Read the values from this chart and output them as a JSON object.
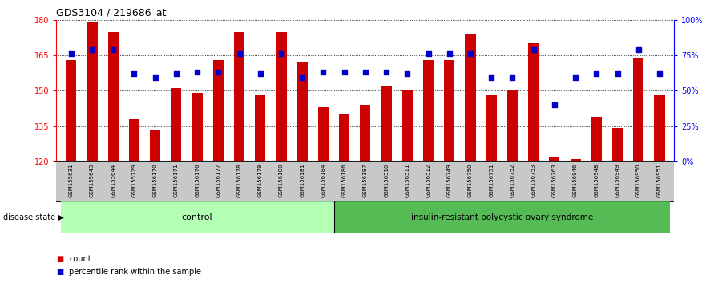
{
  "title": "GDS3104 / 219686_at",
  "samples": [
    "GSM155631",
    "GSM155643",
    "GSM155644",
    "GSM155729",
    "GSM156170",
    "GSM156171",
    "GSM156176",
    "GSM156177",
    "GSM156178",
    "GSM156179",
    "GSM156180",
    "GSM156181",
    "GSM156184",
    "GSM156186",
    "GSM156187",
    "GSM156510",
    "GSM156511",
    "GSM156512",
    "GSM156749",
    "GSM156750",
    "GSM156751",
    "GSM156752",
    "GSM156753",
    "GSM156763",
    "GSM156946",
    "GSM156948",
    "GSM156949",
    "GSM156950",
    "GSM156951"
  ],
  "bar_values": [
    163,
    179,
    175,
    138,
    133,
    151,
    149,
    163,
    175,
    148,
    175,
    162,
    143,
    140,
    144,
    152,
    150,
    163,
    163,
    174,
    148,
    150,
    170,
    122,
    121,
    139,
    134,
    164,
    148
  ],
  "percentile_values": [
    76,
    79,
    79,
    62,
    59,
    62,
    63,
    63,
    76,
    62,
    76,
    59,
    63,
    63,
    63,
    63,
    62,
    76,
    76,
    76,
    59,
    59,
    79,
    40,
    59,
    62,
    62,
    79,
    62
  ],
  "control_count": 13,
  "y_min": 120,
  "y_max": 180,
  "y_ticks": [
    120,
    135,
    150,
    165,
    180
  ],
  "right_y_ticks": [
    0,
    25,
    50,
    75,
    100
  ],
  "right_y_labels": [
    "0%",
    "25%",
    "50%",
    "75%",
    "100%"
  ],
  "bar_color": "#cc0000",
  "dot_color": "#0000cc",
  "control_bg": "#b3ffb3",
  "pcos_bg": "#55bb55",
  "label_bg": "#c8c8c8",
  "control_label": "control",
  "pcos_label": "insulin-resistant polycystic ovary syndrome",
  "disease_state_label": "disease state"
}
